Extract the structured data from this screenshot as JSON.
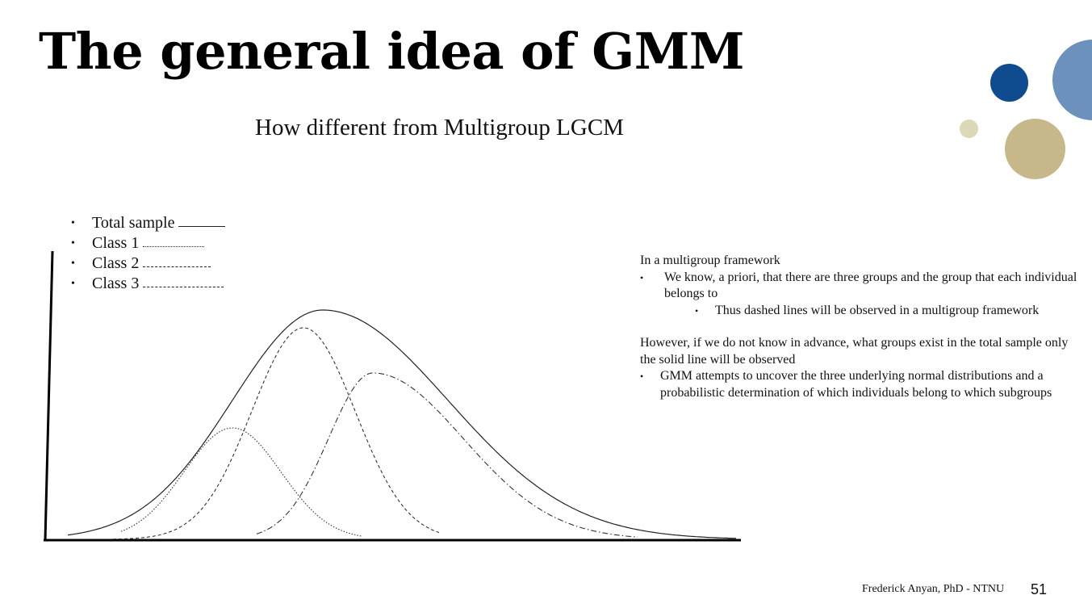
{
  "slide": {
    "title": "The general idea of GMM",
    "subtitle": "How different from Multigroup LGCM",
    "footer": "Frederick Anyan, PhD - NTNU",
    "page_number": "51"
  },
  "legend": [
    {
      "label": "Total sample",
      "style": "solid"
    },
    {
      "label": "Class 1",
      "style": "dotted"
    },
    {
      "label": "Class 2",
      "style": "dashed"
    },
    {
      "label": "Class 3",
      "style": "dash-dot"
    }
  ],
  "text": {
    "heading1": "In a multigroup framework",
    "bullet1": "We know, a priori, that there are three groups and the group that each individual belongs to",
    "subbullet1": "Thus dashed lines will be observed in a multigroup framework",
    "para2": "However, if we do not know in advance, what groups exist in the total sample only the solid line will be observed",
    "bullet2": "GMM attempts to uncover the three underlying normal distributions and a probabilistic determination of which individuals belong to which subgroups"
  },
  "colors": {
    "deco_navy": "#0f4c8f",
    "deco_steel": "#6d91bd",
    "deco_gold": "#c7b88a",
    "deco_beige": "#ddd8b8"
  }
}
